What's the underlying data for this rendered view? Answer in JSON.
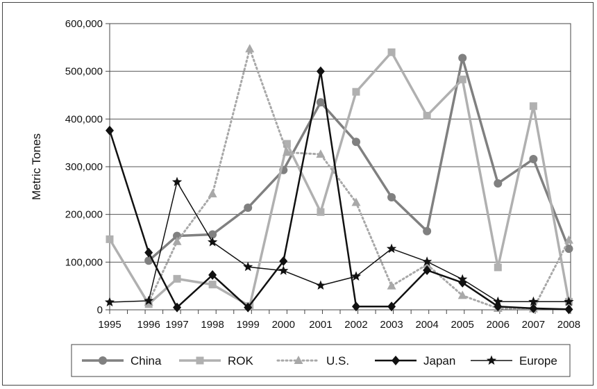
{
  "chart_data": {
    "type": "line",
    "title": "",
    "xlabel": "",
    "ylabel": "Metric Tones",
    "ylim": [
      0,
      600000
    ],
    "yticks": [
      "0",
      "100,000",
      "200,000",
      "300,000",
      "400,000",
      "500,000",
      "600,000"
    ],
    "ytick_values": [
      0,
      100000,
      200000,
      300000,
      400000,
      500000,
      600000
    ],
    "xticks": [
      "1995",
      "1996",
      "1997",
      "1998",
      "1999",
      "2000",
      "2001",
      "2002",
      "2003",
      "2004",
      "2005",
      "2006",
      "2007",
      "2008"
    ],
    "grid": "horizontal",
    "legend_position": "bottom",
    "series": [
      {
        "name": "China",
        "color": "#808080",
        "marker": "circle",
        "dash": "solid",
        "points": [
          [
            1996.1,
            103000
          ],
          [
            1996.9,
            155000
          ],
          [
            1997.9,
            158000
          ],
          [
            1998.9,
            214000
          ],
          [
            1999.9,
            293000
          ],
          [
            2000.95,
            435000
          ],
          [
            2001.95,
            352000
          ],
          [
            2002.95,
            236000
          ],
          [
            2003.95,
            165000
          ],
          [
            2004.95,
            528000
          ],
          [
            2005.95,
            265000
          ],
          [
            2006.95,
            316000
          ],
          [
            2007.95,
            128000
          ]
        ]
      },
      {
        "name": "ROK",
        "color": "#b0b0b0",
        "marker": "square",
        "dash": "solid",
        "points": [
          [
            1995.0,
            148000
          ],
          [
            1996.1,
            12000
          ],
          [
            1996.9,
            65000
          ],
          [
            1997.9,
            53000
          ],
          [
            1998.95,
            8000
          ],
          [
            2000.0,
            348000
          ],
          [
            2000.95,
            205000
          ],
          [
            2001.95,
            457000
          ],
          [
            2002.95,
            540000
          ],
          [
            2003.95,
            407000
          ],
          [
            2004.95,
            483000
          ],
          [
            2005.95,
            89000
          ],
          [
            2006.95,
            427000
          ],
          [
            2007.95,
            17000
          ]
        ]
      },
      {
        "name": "U.S.",
        "color": "#a8a8a8",
        "marker": "triangle",
        "dash": "dotted",
        "points": [
          [
            1996.1,
            16000
          ],
          [
            1996.9,
            143000
          ],
          [
            1997.9,
            243000
          ],
          [
            1998.95,
            547000
          ],
          [
            2000.0,
            330000
          ],
          [
            2000.95,
            326000
          ],
          [
            2001.95,
            225000
          ],
          [
            2002.95,
            50000
          ],
          [
            2003.95,
            95000
          ],
          [
            2004.95,
            30000
          ],
          [
            2005.95,
            3000
          ],
          [
            2006.95,
            2000
          ],
          [
            2007.95,
            146000
          ]
        ]
      },
      {
        "name": "Japan",
        "color": "#111111",
        "marker": "diamond",
        "dash": "solid",
        "points": [
          [
            1995.0,
            376000
          ],
          [
            1996.1,
            120000
          ],
          [
            1996.9,
            5000
          ],
          [
            1997.9,
            73000
          ],
          [
            1998.9,
            5000
          ],
          [
            1999.9,
            102000
          ],
          [
            2000.95,
            500000
          ],
          [
            2001.95,
            7000
          ],
          [
            2002.95,
            7000
          ],
          [
            2003.95,
            83000
          ],
          [
            2004.95,
            57000
          ],
          [
            2005.95,
            7000
          ],
          [
            2006.95,
            3000
          ],
          [
            2007.95,
            1000
          ]
        ]
      },
      {
        "name": "Europe",
        "color": "#111111",
        "marker": "star",
        "dash": "solid",
        "points": [
          [
            1995.0,
            16000
          ],
          [
            1996.1,
            19000
          ],
          [
            1996.9,
            268000
          ],
          [
            1997.9,
            142000
          ],
          [
            1998.9,
            90000
          ],
          [
            1999.9,
            82000
          ],
          [
            2000.95,
            51000
          ],
          [
            2001.95,
            70000
          ],
          [
            2002.95,
            128000
          ],
          [
            2003.95,
            101000
          ],
          [
            2004.95,
            64000
          ],
          [
            2005.95,
            17000
          ],
          [
            2006.95,
            17000
          ],
          [
            2007.95,
            17000
          ]
        ]
      }
    ]
  }
}
